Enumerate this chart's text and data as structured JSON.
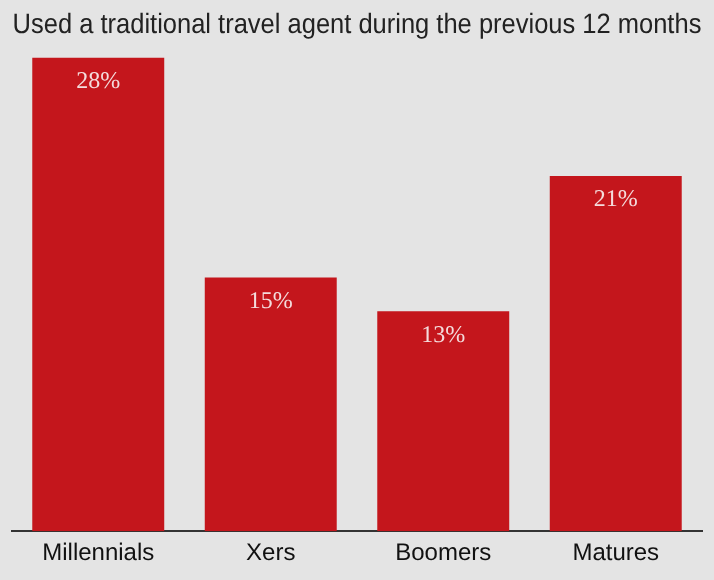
{
  "chart_data": {
    "type": "bar",
    "title": "Used a traditional travel agent during the previous 12 months",
    "categories": [
      "Millennials",
      "Xers",
      "Boomers",
      "Matures"
    ],
    "values": [
      28,
      15,
      13,
      21
    ],
    "color": "#c4161c",
    "value_labels": [
      "28%",
      "15%",
      "13%",
      "21%"
    ],
    "legend": false
  }
}
